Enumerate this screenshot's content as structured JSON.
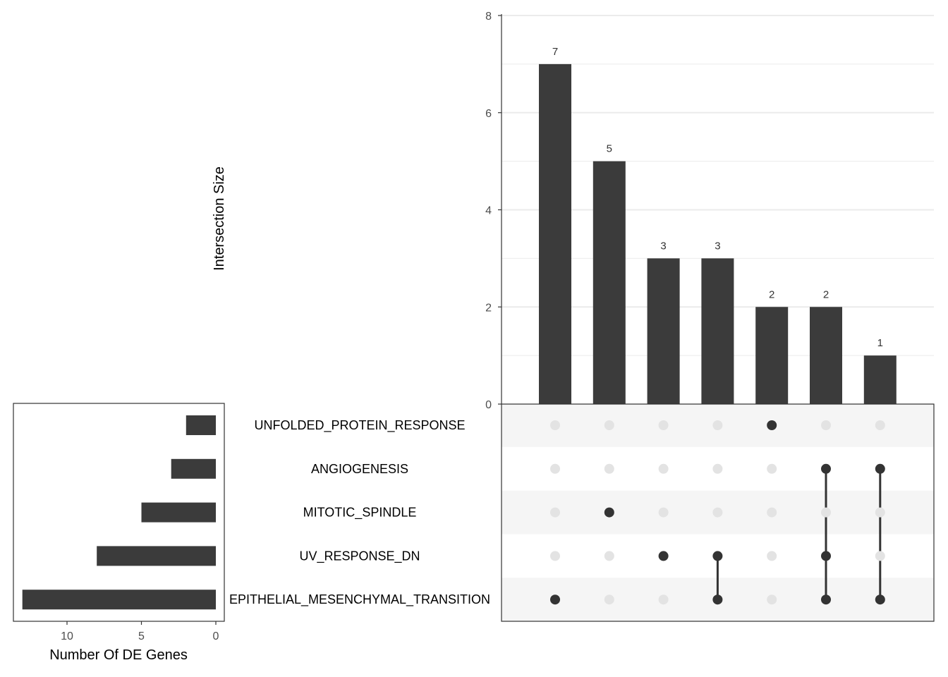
{
  "chart_data": {
    "type": "upset",
    "intersection_axis": {
      "title": "Intersection Size",
      "ylim": [
        0,
        8
      ],
      "ticks": [
        0,
        2,
        4,
        6,
        8
      ],
      "minor_gridlines": [
        1,
        3,
        5,
        7
      ]
    },
    "intersections": [
      {
        "size": 7,
        "label": "7",
        "sets": [
          "EPITHELIAL_MESENCHYMAL_TRANSITION"
        ]
      },
      {
        "size": 5,
        "label": "5",
        "sets": [
          "MITOTIC_SPINDLE"
        ]
      },
      {
        "size": 3,
        "label": "3",
        "sets": [
          "UV_RESPONSE_DN"
        ]
      },
      {
        "size": 3,
        "label": "3",
        "sets": [
          "UV_RESPONSE_DN",
          "EPITHELIAL_MESENCHYMAL_TRANSITION"
        ]
      },
      {
        "size": 2,
        "label": "2",
        "sets": [
          "UNFOLDED_PROTEIN_RESPONSE"
        ]
      },
      {
        "size": 2,
        "label": "2",
        "sets": [
          "ANGIOGENESIS",
          "UV_RESPONSE_DN",
          "EPITHELIAL_MESENCHYMAL_TRANSITION"
        ]
      },
      {
        "size": 1,
        "label": "1",
        "sets": [
          "ANGIOGENESIS",
          "EPITHELIAL_MESENCHYMAL_TRANSITION"
        ]
      }
    ],
    "sets": [
      {
        "name": "UNFOLDED_PROTEIN_RESPONSE",
        "size": 2
      },
      {
        "name": "ANGIOGENESIS",
        "size": 3
      },
      {
        "name": "MITOTIC_SPINDLE",
        "size": 5
      },
      {
        "name": "UV_RESPONSE_DN",
        "size": 8
      },
      {
        "name": "EPITHELIAL_MESENCHYMAL_TRANSITION",
        "size": 13
      }
    ],
    "set_size_axis": {
      "title": "Number Of DE Genes",
      "xlim": [
        14,
        0
      ],
      "ticks": [
        10,
        5,
        0
      ]
    },
    "colors": {
      "bar": "#3b3b3b",
      "dot_active": "#333333",
      "dot_inactive": "#e3e3e3",
      "stripe": "#f5f5f5",
      "grid": "#ebebeb",
      "axis": "#333333"
    }
  }
}
